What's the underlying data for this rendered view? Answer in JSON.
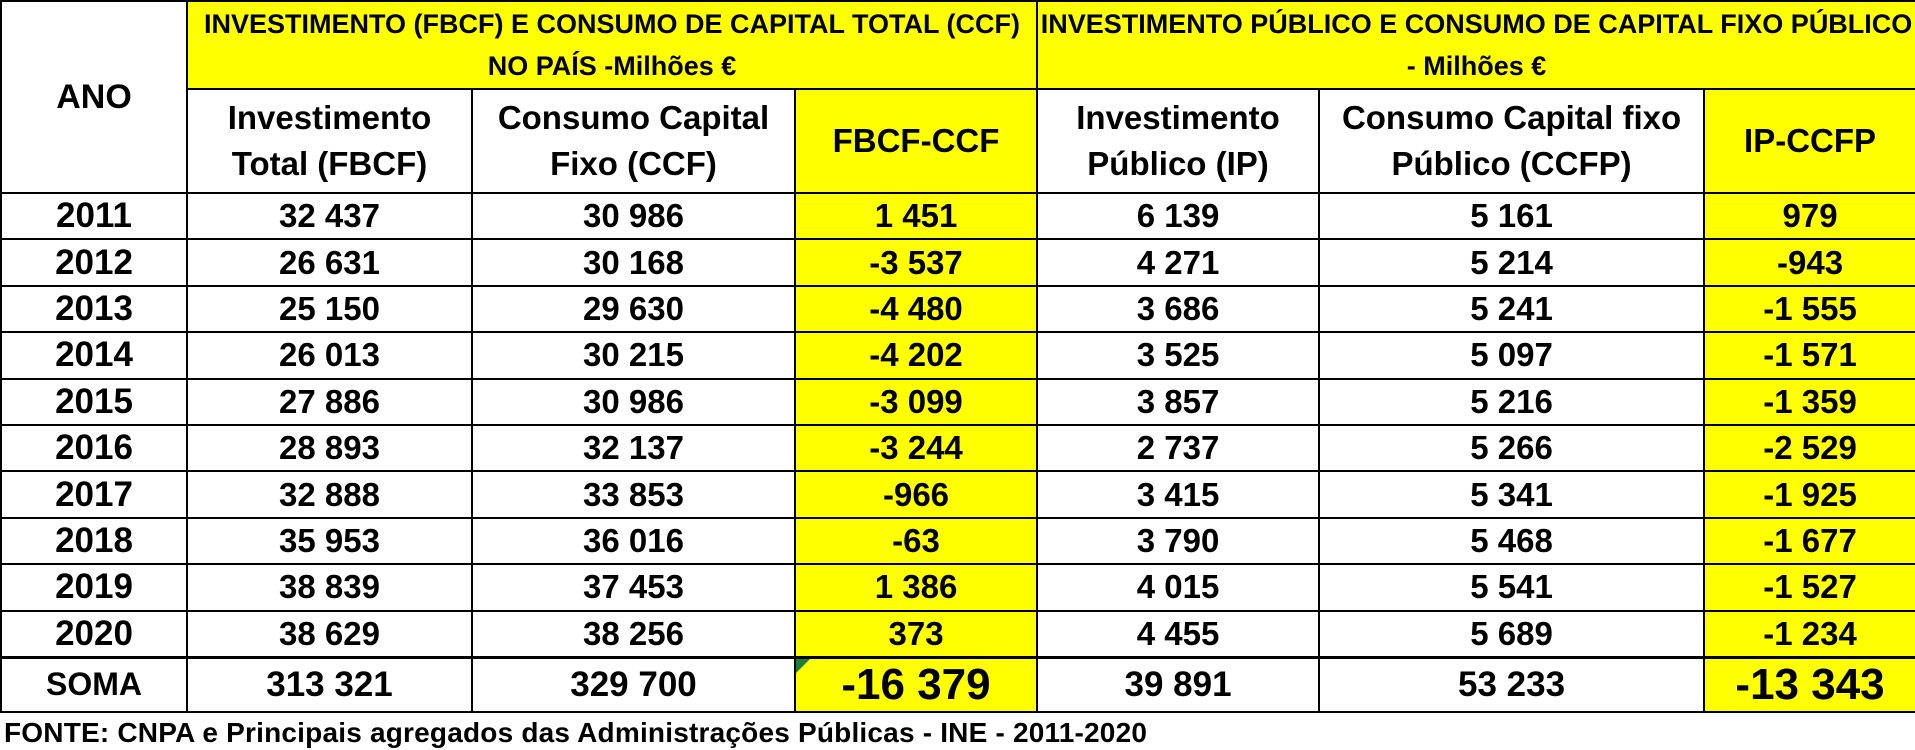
{
  "header": {
    "ano": "ANO",
    "group1": "INVESTIMENTO (FBCF) E CONSUMO DE CAPITAL TOTAL (CCF) NO PAÍS -Milhões €",
    "group2": "INVESTIMENTO PÚBLICO E CONSUMO DE CAPITAL FIXO PÚBLICO - Milhões €",
    "cols": [
      "Investimento Total (FBCF)",
      "Consumo Capital Fixo (CCF)",
      "FBCF-CCF",
      "Investimento Público (IP)",
      "Consumo Capital fixo Público (CCFP)",
      "IP-CCFP"
    ]
  },
  "rows": [
    {
      "year": "2011",
      "fbcf": "32 437",
      "ccf": "30 986",
      "fbcf_ccf": "1 451",
      "ip": "6 139",
      "ccfp": "5 161",
      "ip_ccfp": "979"
    },
    {
      "year": "2012",
      "fbcf": "26 631",
      "ccf": "30 168",
      "fbcf_ccf": "-3 537",
      "ip": "4 271",
      "ccfp": "5 214",
      "ip_ccfp": "-943"
    },
    {
      "year": "2013",
      "fbcf": "25 150",
      "ccf": "29 630",
      "fbcf_ccf": "-4 480",
      "ip": "3 686",
      "ccfp": "5 241",
      "ip_ccfp": "-1 555"
    },
    {
      "year": "2014",
      "fbcf": "26 013",
      "ccf": "30 215",
      "fbcf_ccf": "-4 202",
      "ip": "3 525",
      "ccfp": "5 097",
      "ip_ccfp": "-1 571"
    },
    {
      "year": "2015",
      "fbcf": "27 886",
      "ccf": "30 986",
      "fbcf_ccf": "-3 099",
      "ip": "3 857",
      "ccfp": "5 216",
      "ip_ccfp": "-1 359"
    },
    {
      "year": "2016",
      "fbcf": "28 893",
      "ccf": "32 137",
      "fbcf_ccf": "-3 244",
      "ip": "2 737",
      "ccfp": "5 266",
      "ip_ccfp": "-2 529"
    },
    {
      "year": "2017",
      "fbcf": "32 888",
      "ccf": "33 853",
      "fbcf_ccf": "-966",
      "ip": "3 415",
      "ccfp": "5 341",
      "ip_ccfp": "-1 925"
    },
    {
      "year": "2018",
      "fbcf": "35 953",
      "ccf": "36 016",
      "fbcf_ccf": "-63",
      "ip": "3 790",
      "ccfp": "5 468",
      "ip_ccfp": "-1 677"
    },
    {
      "year": "2019",
      "fbcf": "38 839",
      "ccf": "37 453",
      "fbcf_ccf": "1 386",
      "ip": "4 015",
      "ccfp": "5 541",
      "ip_ccfp": "-1 527"
    },
    {
      "year": "2020",
      "fbcf": "38 629",
      "ccf": "38 256",
      "fbcf_ccf": "373",
      "ip": "4 455",
      "ccfp": "5 689",
      "ip_ccfp": "-1 234"
    }
  ],
  "total": {
    "label": "SOMA",
    "fbcf": "313 321",
    "ccf": "329 700",
    "fbcf_ccf": "-16 379",
    "ip": "39 891",
    "ccfp": "53 233",
    "ip_ccfp": "-13 343"
  },
  "source": "FONTE: CNPA e Principais agregados das Administrações Públicas - INE - 2011-2020",
  "colors": {
    "highlight": "#ffff00",
    "border": "#000000",
    "corner_mark": "#1a7f3c"
  }
}
